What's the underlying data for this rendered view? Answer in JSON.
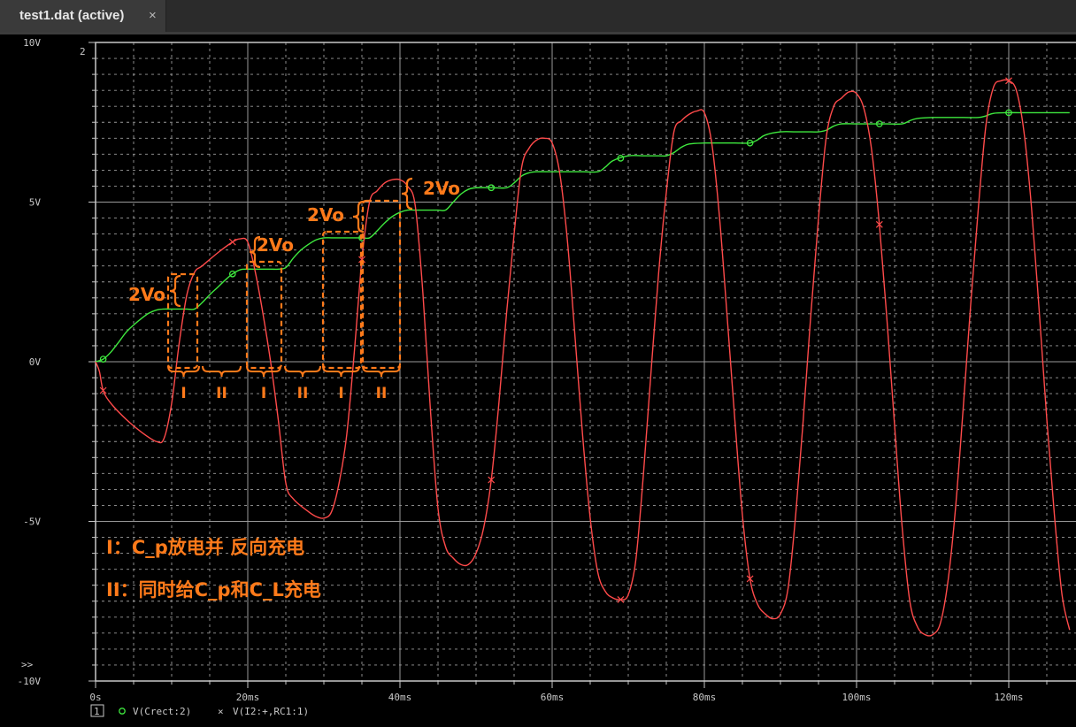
{
  "tab": {
    "title": "test1.dat (active)",
    "close": "×"
  },
  "plot_corner_label": "2",
  "more_indicator": ">>",
  "legend_box_label": "1",
  "colors": {
    "background": "#000000",
    "grid": "#9a9a9a",
    "green": "#3ee83e",
    "red": "#ff4a4a",
    "annotation": "#ff7a1a"
  },
  "chart_data": {
    "type": "line",
    "title": "",
    "xlabel": "",
    "ylabel": "",
    "x_ticks": [
      "0s",
      "20ms",
      "40ms",
      "60ms",
      "80ms",
      "100ms",
      "120ms"
    ],
    "y_ticks": [
      "10V",
      "5V",
      "0V",
      "-5V",
      "-10V"
    ],
    "xlim_ms": [
      0,
      128
    ],
    "ylim_V": [
      -10,
      10
    ],
    "grid": true,
    "series": [
      {
        "name": "V(Crect:2)",
        "marker": "circle",
        "color": "#3ee83e",
        "x_ms": [
          0,
          1,
          2,
          3,
          4,
          5,
          6,
          7,
          8,
          9,
          10,
          11,
          12,
          13,
          14,
          15,
          16,
          17,
          18,
          19,
          20,
          21,
          22,
          23,
          24,
          25,
          26,
          27,
          28,
          29,
          30,
          31,
          32,
          33,
          34,
          35,
          36,
          37,
          38,
          39,
          40,
          41,
          42,
          43,
          44,
          45,
          46,
          47,
          48,
          49,
          50,
          52,
          54,
          55,
          56,
          57,
          58,
          60,
          62,
          64,
          66,
          67,
          68,
          70,
          72,
          74,
          75,
          76,
          77,
          78,
          80,
          82,
          84,
          86,
          87,
          88,
          90,
          92,
          94,
          95,
          96,
          97,
          98,
          100,
          102,
          104,
          106,
          107,
          108,
          110,
          112,
          114,
          116,
          117,
          118,
          120,
          122,
          124,
          126,
          128
        ],
        "y_V": [
          0,
          0.08,
          0.3,
          0.6,
          0.92,
          1.15,
          1.35,
          1.52,
          1.62,
          1.65,
          1.65,
          1.65,
          1.65,
          1.65,
          1.85,
          2.1,
          2.32,
          2.55,
          2.75,
          2.88,
          2.9,
          2.9,
          2.9,
          2.9,
          2.9,
          2.95,
          3.25,
          3.5,
          3.68,
          3.82,
          3.88,
          3.88,
          3.88,
          3.88,
          3.88,
          3.88,
          3.88,
          4.1,
          4.35,
          4.55,
          4.68,
          4.75,
          4.75,
          4.75,
          4.75,
          4.75,
          4.75,
          5.0,
          5.25,
          5.4,
          5.45,
          5.45,
          5.45,
          5.6,
          5.82,
          5.92,
          5.95,
          5.95,
          5.95,
          5.95,
          5.95,
          6.1,
          6.3,
          6.45,
          6.45,
          6.45,
          6.45,
          6.55,
          6.72,
          6.82,
          6.85,
          6.85,
          6.85,
          6.85,
          6.95,
          7.1,
          7.2,
          7.2,
          7.2,
          7.2,
          7.25,
          7.38,
          7.45,
          7.45,
          7.45,
          7.45,
          7.45,
          7.55,
          7.62,
          7.65,
          7.65,
          7.65,
          7.65,
          7.7,
          7.78,
          7.8,
          7.8,
          7.8,
          7.8,
          7.8
        ]
      },
      {
        "name": "V(I2:+,RC1:1)",
        "marker": "x",
        "color": "#ff4a4a",
        "x_ms": [
          0,
          0.5,
          1,
          2,
          4,
          6,
          8,
          9,
          10,
          11,
          12,
          13,
          14,
          16,
          18,
          19,
          20,
          21,
          22,
          23,
          24,
          25,
          26,
          28,
          29,
          30,
          31,
          32,
          33,
          34,
          35,
          36,
          37,
          38,
          39,
          40,
          41,
          42,
          43,
          44,
          45,
          46,
          47,
          48,
          49,
          50,
          51,
          52,
          53,
          54,
          55,
          56,
          57,
          58,
          59,
          60,
          61,
          62,
          63,
          64,
          65,
          66,
          67,
          68,
          69,
          70,
          71,
          72,
          73,
          74,
          75,
          76,
          77,
          78,
          79,
          80,
          81,
          82,
          83,
          84,
          85,
          86,
          87,
          88,
          89,
          90,
          91,
          92,
          93,
          94,
          95,
          96,
          97,
          98,
          99,
          100,
          101,
          102,
          103,
          104,
          105,
          106,
          107,
          108,
          109,
          110,
          111,
          112,
          113,
          114,
          115,
          116,
          117,
          118,
          119,
          120,
          121,
          122,
          123,
          124,
          125,
          126,
          127,
          128
        ],
        "y_V": [
          0,
          -0.3,
          -0.9,
          -1.3,
          -1.8,
          -2.2,
          -2.5,
          -2.4,
          -1.3,
          0.6,
          2.1,
          2.8,
          3.0,
          3.4,
          3.75,
          3.85,
          3.75,
          2.8,
          1.5,
          0,
          -1.8,
          -3.8,
          -4.3,
          -4.7,
          -4.85,
          -4.9,
          -4.7,
          -3.8,
          -2.3,
          0.3,
          3.2,
          5.0,
          5.35,
          5.6,
          5.7,
          5.7,
          5.5,
          4.9,
          2.2,
          -1.5,
          -4.6,
          -5.8,
          -6.15,
          -6.35,
          -6.35,
          -6.0,
          -5.2,
          -3.7,
          -1.3,
          1.5,
          4.0,
          6.1,
          6.7,
          6.95,
          7.0,
          6.85,
          5.9,
          3.8,
          0.8,
          -2.3,
          -4.9,
          -6.6,
          -7.2,
          -7.4,
          -7.45,
          -7.3,
          -6.2,
          -3.5,
          -0.3,
          2.8,
          5.3,
          7.2,
          7.55,
          7.75,
          7.85,
          7.8,
          6.8,
          4.5,
          1.4,
          -1.8,
          -4.8,
          -6.8,
          -7.6,
          -7.9,
          -8.05,
          -7.9,
          -7.1,
          -4.8,
          -1.8,
          1.5,
          4.5,
          7.0,
          8.0,
          8.25,
          8.45,
          8.4,
          7.9,
          6.6,
          4.3,
          1.3,
          -2.0,
          -5.2,
          -7.5,
          -8.3,
          -8.55,
          -8.55,
          -8.2,
          -6.9,
          -4.6,
          -1.5,
          1.8,
          4.8,
          7.4,
          8.6,
          8.8,
          8.8,
          8.5,
          7.2,
          4.8,
          1.6,
          -1.8,
          -4.8,
          -7.3,
          -8.4
        ]
      }
    ]
  },
  "annotations": {
    "bracket_labels": [
      "2Vo",
      "2Vo",
      "2Vo",
      "2Vo"
    ],
    "interval_labels": [
      "I",
      "II",
      "I",
      "II",
      "I",
      "II"
    ],
    "legend_line_1": "I：C_p放电并 反向充电",
    "legend_line_2": "II：同时给C_p和C_L充电"
  }
}
